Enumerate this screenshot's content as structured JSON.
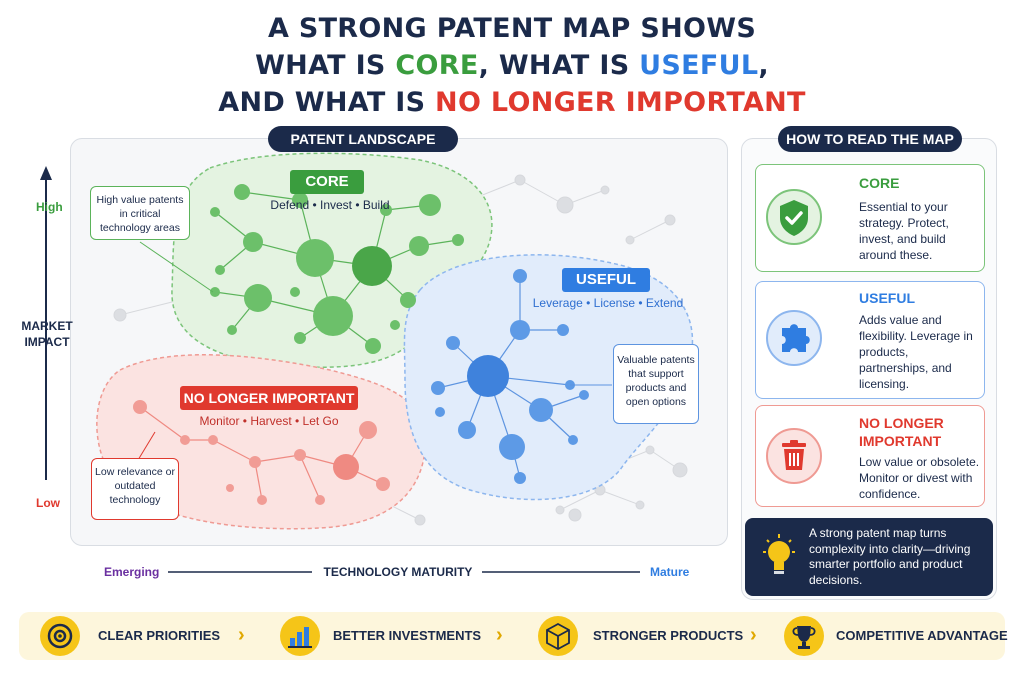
{
  "title": {
    "line1": "A STRONG PATENT MAP SHOWS",
    "line2_prefix": "WHAT IS ",
    "line2_core": "CORE",
    "line2_mid": ", WHAT IS ",
    "line2_useful": "USEFUL",
    "line2_suffix": ",",
    "line3_prefix": "AND WHAT IS ",
    "line3_nli": "NO LONGER IMPORTANT"
  },
  "landscape": {
    "label": "PATENT LANDSCAPE",
    "core": {
      "label": "CORE",
      "actions": "Defend • Invest • Build",
      "note": "High value patents in critical technology areas"
    },
    "useful": {
      "label": "USEFUL",
      "actions": "Leverage • License • Extend",
      "note": "Valuable patents that support products and open options"
    },
    "nli": {
      "label": "NO LONGER IMPORTANT",
      "actions": "Monitor • Harvest • Let Go",
      "note": "Low relevance or outdated technology"
    },
    "y_axis": {
      "title": "MARKET IMPACT",
      "high": "High",
      "low": "Low"
    },
    "x_axis": {
      "title": "TECHNOLOGY MATURITY",
      "left": "Emerging",
      "right": "Mature"
    }
  },
  "legend": {
    "title": "HOW TO READ THE MAP",
    "cards": [
      {
        "title": "CORE",
        "desc": "Essential to your strategy. Protect, invest, and build around these.",
        "icon": "shield-check-icon",
        "color": "#3a9d3e"
      },
      {
        "title": "USEFUL",
        "desc": "Adds value and flexibility. Leverage in products, partnerships, and licensing.",
        "icon": "puzzle-icon",
        "color": "#2f7de1"
      },
      {
        "title": "NO LONGER IMPORTANT",
        "desc": "Low value or obsolete. Monitor or divest with confidence.",
        "icon": "trash-icon",
        "color": "#e0392e"
      }
    ],
    "callout": "A strong patent map turns complexity into clarity—driving smarter portfolio and product decisions."
  },
  "benefits": [
    {
      "label": "CLEAR PRIORITIES",
      "icon": "target-icon"
    },
    {
      "label": "BETTER INVESTMENTS",
      "icon": "bar-chart-icon"
    },
    {
      "label": "STRONGER PRODUCTS",
      "icon": "cube-icon"
    },
    {
      "label": "COMPETITIVE ADVANTAGE",
      "icon": "trophy-icon"
    }
  ],
  "colors": {
    "navy": "#1b2a4a",
    "green": "#3a9d3e",
    "blue": "#2f7de1",
    "red": "#e0392e",
    "gold": "#f5c518",
    "purple": "#6a2fa0"
  }
}
